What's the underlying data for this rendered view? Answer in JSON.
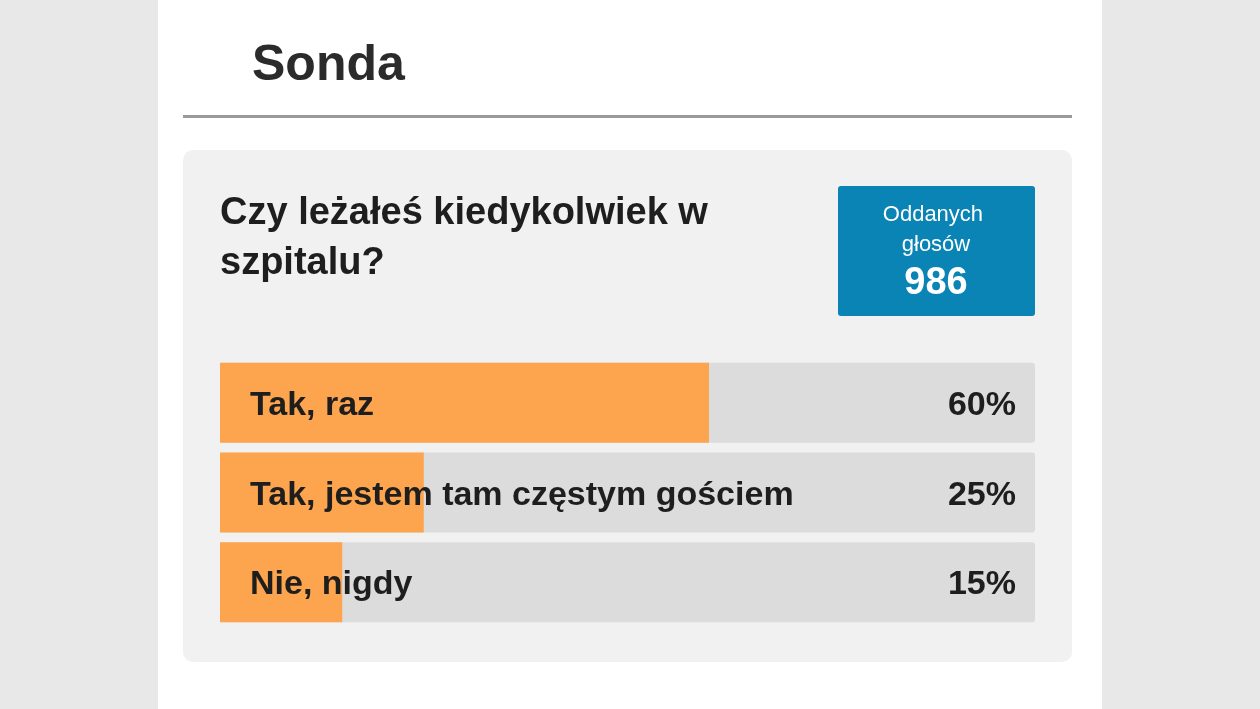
{
  "chart_data": {
    "type": "bar",
    "orientation": "horizontal",
    "title": "Sonda",
    "subtitle": "Czy leżałeś kiedykolwiek w szpitalu?",
    "annotations": [
      "Oddanych głosów",
      "986"
    ],
    "categories": [
      "Tak, raz",
      "Tak, jestem tam częstym gościem",
      "Nie, nigdy"
    ],
    "values": [
      60,
      25,
      15
    ],
    "value_labels": [
      "60%",
      "25%",
      "15%"
    ],
    "color": "#fca54e",
    "xlim": [
      0,
      100
    ],
    "tick_labels": false
  }
}
